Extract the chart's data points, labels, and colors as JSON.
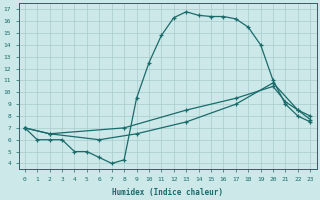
{
  "xlabel": "Humidex (Indice chaleur)",
  "bg_color": "#cde8e8",
  "line_color": "#1a6b6b",
  "grid_color": "#a8cccc",
  "xlim": [
    -0.5,
    23.5
  ],
  "ylim": [
    3.5,
    17.5
  ],
  "xticks": [
    0,
    1,
    2,
    3,
    4,
    5,
    6,
    7,
    8,
    9,
    10,
    11,
    12,
    13,
    14,
    15,
    16,
    17,
    18,
    19,
    20,
    21,
    22,
    23
  ],
  "yticks": [
    4,
    5,
    6,
    7,
    8,
    9,
    10,
    11,
    12,
    13,
    14,
    15,
    16,
    17
  ],
  "line1_x": [
    0,
    1,
    2,
    3,
    4,
    5,
    6,
    7,
    8,
    9,
    10,
    11,
    12,
    13,
    14,
    15,
    16,
    17,
    18,
    19,
    20,
    21,
    22,
    23
  ],
  "line1_y": [
    7,
    6,
    6,
    6,
    5,
    5,
    4.5,
    4,
    4.3,
    9.5,
    12.5,
    14.8,
    16.3,
    16.8,
    16.5,
    16.4,
    16.4,
    16.2,
    15.5,
    14,
    11,
    9,
    8,
    7.5
  ],
  "line2_x": [
    0,
    2,
    8,
    13,
    17,
    20,
    21,
    22,
    23
  ],
  "line2_y": [
    7,
    6.5,
    7.0,
    8.5,
    9.5,
    10.5,
    9.2,
    8.5,
    8.0
  ],
  "line3_x": [
    0,
    2,
    6,
    9,
    13,
    17,
    20,
    22,
    23
  ],
  "line3_y": [
    7,
    6.5,
    6.0,
    6.5,
    7.5,
    9.0,
    10.8,
    8.5,
    7.7
  ]
}
